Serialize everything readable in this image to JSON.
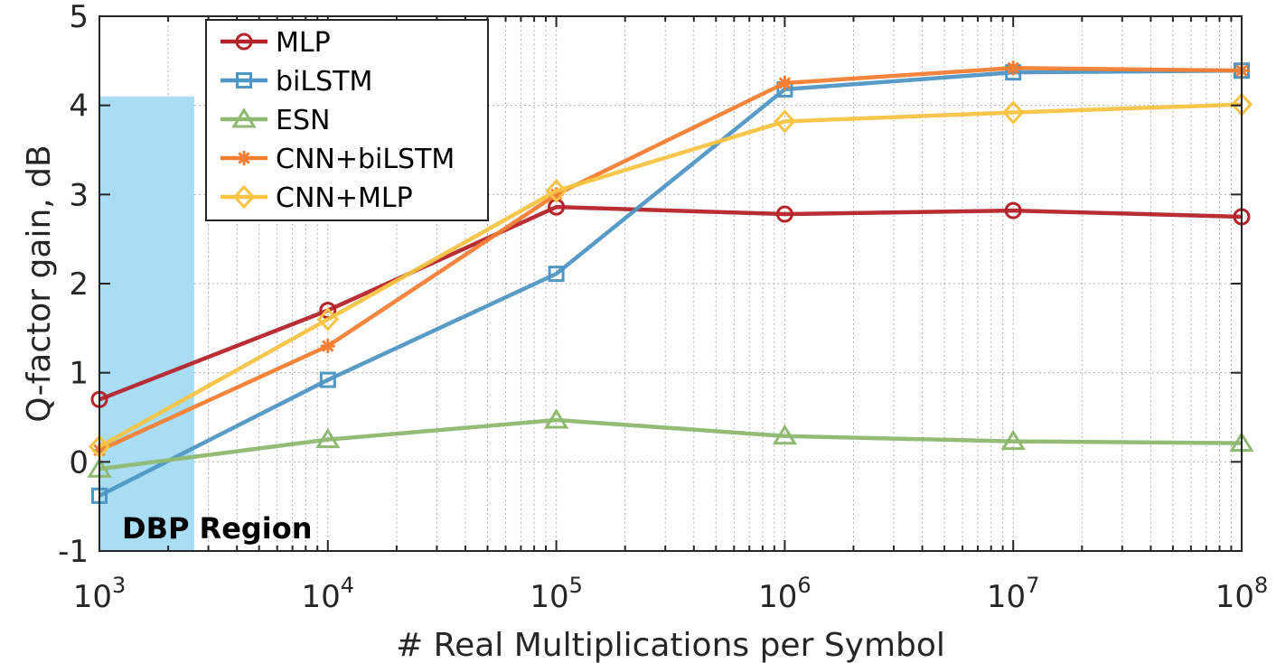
{
  "chart_data": {
    "type": "line",
    "title": "",
    "xlabel": "# Real Multiplications per Symbol",
    "ylabel": "Q-factor gain, dB",
    "xscale": "log",
    "xlim": [
      1000,
      100000000
    ],
    "ylim": [
      -1,
      5
    ],
    "grid": true,
    "legend_position": "top-left",
    "x": [
      1000,
      10000,
      100000,
      1000000,
      10000000,
      100000000
    ],
    "x_ticks": [
      {
        "value": 1000,
        "base": "10",
        "exp": "3"
      },
      {
        "value": 10000,
        "base": "10",
        "exp": "4"
      },
      {
        "value": 100000,
        "base": "10",
        "exp": "5"
      },
      {
        "value": 1000000,
        "base": "10",
        "exp": "6"
      },
      {
        "value": 10000000,
        "base": "10",
        "exp": "7"
      },
      {
        "value": 100000000,
        "base": "10",
        "exp": "8"
      }
    ],
    "y_ticks": [
      {
        "value": -1,
        "label": "-1"
      },
      {
        "value": 0,
        "label": "0"
      },
      {
        "value": 1,
        "label": "1"
      },
      {
        "value": 2,
        "label": "2"
      },
      {
        "value": 3,
        "label": "3"
      },
      {
        "value": 4,
        "label": "4"
      },
      {
        "value": 5,
        "label": "5"
      }
    ],
    "region": {
      "label": "DBP Region",
      "x_start": 1000,
      "x_end": 2600,
      "y_top": 4.1,
      "color": "#a8ddf3"
    },
    "series": [
      {
        "name": "MLP",
        "color": "#b5232a",
        "marker": "circle",
        "values": [
          0.7,
          1.7,
          2.86,
          2.78,
          2.82,
          2.75
        ]
      },
      {
        "name": "biLSTM",
        "color": "#4f96c4",
        "marker": "square",
        "values": [
          -0.38,
          0.92,
          2.11,
          4.18,
          4.37,
          4.39
        ]
      },
      {
        "name": "ESN",
        "color": "#8fb870",
        "marker": "triangle",
        "values": [
          -0.08,
          0.25,
          0.47,
          0.29,
          0.23,
          0.21
        ]
      },
      {
        "name": "CNN+biLSTM",
        "color": "#f47e33",
        "marker": "asterisk",
        "values": [
          0.13,
          1.3,
          3.0,
          4.25,
          4.42,
          4.39
        ]
      },
      {
        "name": "CNN+MLP",
        "color": "#f6c343",
        "marker": "diamond",
        "values": [
          0.17,
          1.6,
          3.04,
          3.82,
          3.92,
          4.01
        ]
      }
    ]
  }
}
